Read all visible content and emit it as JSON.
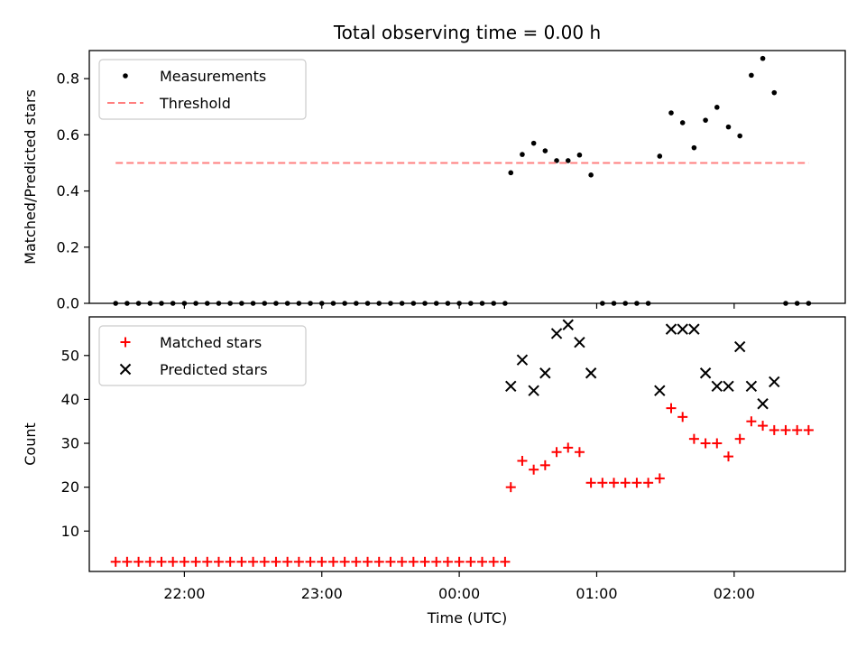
{
  "title": "Total observing time = 0.00 h",
  "x_axis": {
    "label": "Time (UTC)",
    "ticks": [
      {
        "t": 30,
        "label": "22:00"
      },
      {
        "t": 90,
        "label": "23:00"
      },
      {
        "t": 150,
        "label": "00:00"
      },
      {
        "t": 210,
        "label": "01:00"
      },
      {
        "t": 270,
        "label": "02:00"
      }
    ],
    "range": [
      -11.5,
      318.5
    ],
    "unit": "minutes after 21:30 UTC"
  },
  "colors": {
    "measurements": "#000000",
    "threshold": "#ff7f7f",
    "matched": "#ff0000",
    "predicted": "#000000"
  },
  "chart_data": [
    {
      "type": "scatter",
      "ylabel": "Matched/Predicted stars",
      "ylim": [
        0,
        0.9
      ],
      "yticks": [
        {
          "v": 0.0,
          "label": "0.0"
        },
        {
          "v": 0.2,
          "label": "0.2"
        },
        {
          "v": 0.4,
          "label": "0.4"
        },
        {
          "v": 0.6,
          "label": "0.6"
        },
        {
          "v": 0.8,
          "label": "0.8"
        }
      ],
      "legend": {
        "placement": "upper-left",
        "entries": [
          "Measurements",
          "Threshold"
        ]
      },
      "series": [
        {
          "name": "Measurements",
          "marker": "dot",
          "points": [
            [
              0,
              0
            ],
            [
              5,
              0
            ],
            [
              10,
              0
            ],
            [
              15,
              0
            ],
            [
              20,
              0
            ],
            [
              25,
              0
            ],
            [
              30,
              0
            ],
            [
              35,
              0
            ],
            [
              40,
              0
            ],
            [
              45,
              0
            ],
            [
              50,
              0
            ],
            [
              55,
              0
            ],
            [
              60,
              0
            ],
            [
              65,
              0
            ],
            [
              70,
              0
            ],
            [
              75,
              0
            ],
            [
              80,
              0
            ],
            [
              85,
              0
            ],
            [
              90,
              0
            ],
            [
              95,
              0
            ],
            [
              100,
              0
            ],
            [
              105,
              0
            ],
            [
              110,
              0
            ],
            [
              115,
              0
            ],
            [
              120,
              0
            ],
            [
              125,
              0
            ],
            [
              130,
              0
            ],
            [
              135,
              0
            ],
            [
              140,
              0
            ],
            [
              145,
              0
            ],
            [
              150,
              0
            ],
            [
              155,
              0
            ],
            [
              160,
              0
            ],
            [
              165,
              0
            ],
            [
              170,
              0
            ],
            [
              172.5,
              0.465
            ],
            [
              177.5,
              0.53
            ],
            [
              182.5,
              0.57
            ],
            [
              187.5,
              0.543
            ],
            [
              192.5,
              0.508
            ],
            [
              197.5,
              0.508
            ],
            [
              202.5,
              0.528
            ],
            [
              207.5,
              0.457
            ],
            [
              212.5,
              0
            ],
            [
              217.5,
              0
            ],
            [
              222.5,
              0
            ],
            [
              227.5,
              0
            ],
            [
              232.5,
              0
            ],
            [
              237.5,
              0.524
            ],
            [
              242.5,
              0.678
            ],
            [
              247.5,
              0.643
            ],
            [
              252.5,
              0.554
            ],
            [
              257.5,
              0.652
            ],
            [
              262.5,
              0.698
            ],
            [
              267.5,
              0.628
            ],
            [
              272.5,
              0.596
            ],
            [
              277.5,
              0.812
            ],
            [
              282.5,
              0.872
            ],
            [
              287.5,
              0.75
            ],
            [
              292.5,
              0
            ],
            [
              297.5,
              0
            ],
            [
              302.5,
              0
            ]
          ]
        },
        {
          "name": "Threshold",
          "style": "dashed",
          "x_range": [
            0,
            302.5
          ],
          "value": 0.5
        }
      ]
    },
    {
      "type": "scatter",
      "ylabel": "Count",
      "ylim": [
        0.8,
        58.8
      ],
      "yticks": [
        {
          "v": 10,
          "label": "10"
        },
        {
          "v": 20,
          "label": "20"
        },
        {
          "v": 30,
          "label": "30"
        },
        {
          "v": 40,
          "label": "40"
        },
        {
          "v": 50,
          "label": "50"
        }
      ],
      "legend": {
        "placement": "upper-left",
        "entries": [
          "Matched stars",
          "Predicted stars"
        ]
      },
      "series": [
        {
          "name": "Matched stars",
          "marker": "plus",
          "points": [
            [
              0,
              3
            ],
            [
              5,
              3
            ],
            [
              10,
              3
            ],
            [
              15,
              3
            ],
            [
              20,
              3
            ],
            [
              25,
              3
            ],
            [
              30,
              3
            ],
            [
              35,
              3
            ],
            [
              40,
              3
            ],
            [
              45,
              3
            ],
            [
              50,
              3
            ],
            [
              55,
              3
            ],
            [
              60,
              3
            ],
            [
              65,
              3
            ],
            [
              70,
              3
            ],
            [
              75,
              3
            ],
            [
              80,
              3
            ],
            [
              85,
              3
            ],
            [
              90,
              3
            ],
            [
              95,
              3
            ],
            [
              100,
              3
            ],
            [
              105,
              3
            ],
            [
              110,
              3
            ],
            [
              115,
              3
            ],
            [
              120,
              3
            ],
            [
              125,
              3
            ],
            [
              130,
              3
            ],
            [
              135,
              3
            ],
            [
              140,
              3
            ],
            [
              145,
              3
            ],
            [
              150,
              3
            ],
            [
              155,
              3
            ],
            [
              160,
              3
            ],
            [
              165,
              3
            ],
            [
              170,
              3
            ],
            [
              172.5,
              20
            ],
            [
              177.5,
              26
            ],
            [
              182.5,
              24
            ],
            [
              187.5,
              25
            ],
            [
              192.5,
              28
            ],
            [
              197.5,
              29
            ],
            [
              202.5,
              28
            ],
            [
              207.5,
              21
            ],
            [
              212.5,
              21
            ],
            [
              217.5,
              21
            ],
            [
              222.5,
              21
            ],
            [
              227.5,
              21
            ],
            [
              232.5,
              21
            ],
            [
              237.5,
              22
            ],
            [
              242.5,
              38
            ],
            [
              247.5,
              36
            ],
            [
              252.5,
              31
            ],
            [
              257.5,
              30
            ],
            [
              262.5,
              30
            ],
            [
              267.5,
              27
            ],
            [
              272.5,
              31
            ],
            [
              277.5,
              35
            ],
            [
              282.5,
              34
            ],
            [
              287.5,
              33
            ],
            [
              292.5,
              33
            ],
            [
              297.5,
              33
            ],
            [
              302.5,
              33
            ]
          ]
        },
        {
          "name": "Predicted stars",
          "marker": "x",
          "points": [
            [
              172.5,
              43
            ],
            [
              177.5,
              49
            ],
            [
              182.5,
              42
            ],
            [
              187.5,
              46
            ],
            [
              192.5,
              55
            ],
            [
              197.5,
              57
            ],
            [
              202.5,
              53
            ],
            [
              207.5,
              46
            ],
            [
              237.5,
              42
            ],
            [
              242.5,
              56
            ],
            [
              247.5,
              56
            ],
            [
              252.5,
              56
            ],
            [
              257.5,
              46
            ],
            [
              262.5,
              43
            ],
            [
              267.5,
              43
            ],
            [
              272.5,
              52
            ],
            [
              277.5,
              43
            ],
            [
              282.5,
              39
            ],
            [
              287.5,
              44
            ]
          ]
        }
      ]
    }
  ]
}
